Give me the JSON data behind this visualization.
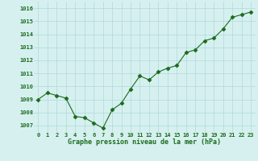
{
  "x": [
    0,
    1,
    2,
    3,
    4,
    5,
    6,
    7,
    8,
    9,
    10,
    11,
    12,
    13,
    14,
    15,
    16,
    17,
    18,
    19,
    20,
    21,
    22,
    23
  ],
  "y": [
    1009.0,
    1009.5,
    1009.3,
    1009.1,
    1007.7,
    1007.6,
    1007.2,
    1006.8,
    1008.2,
    1008.7,
    1009.8,
    1010.8,
    1010.5,
    1011.1,
    1011.4,
    1011.6,
    1012.6,
    1012.8,
    1013.5,
    1013.7,
    1014.4,
    1015.3,
    1015.5,
    1015.7
  ],
  "line_color": "#1a6b1a",
  "marker_color": "#1a6b1a",
  "bg_color": "#d6f0f0",
  "grid_color": "#b0d8d8",
  "xlabel": "Graphe pression niveau de la mer (hPa)",
  "xlabel_color": "#1a6b1a",
  "tick_color": "#1a6b1a",
  "ylim": [
    1006.5,
    1016.5
  ],
  "yticks": [
    1007,
    1008,
    1009,
    1010,
    1011,
    1012,
    1013,
    1014,
    1015,
    1016
  ],
  "xticks": [
    0,
    1,
    2,
    3,
    4,
    5,
    6,
    7,
    8,
    9,
    10,
    11,
    12,
    13,
    14,
    15,
    16,
    17,
    18,
    19,
    20,
    21,
    22,
    23
  ]
}
